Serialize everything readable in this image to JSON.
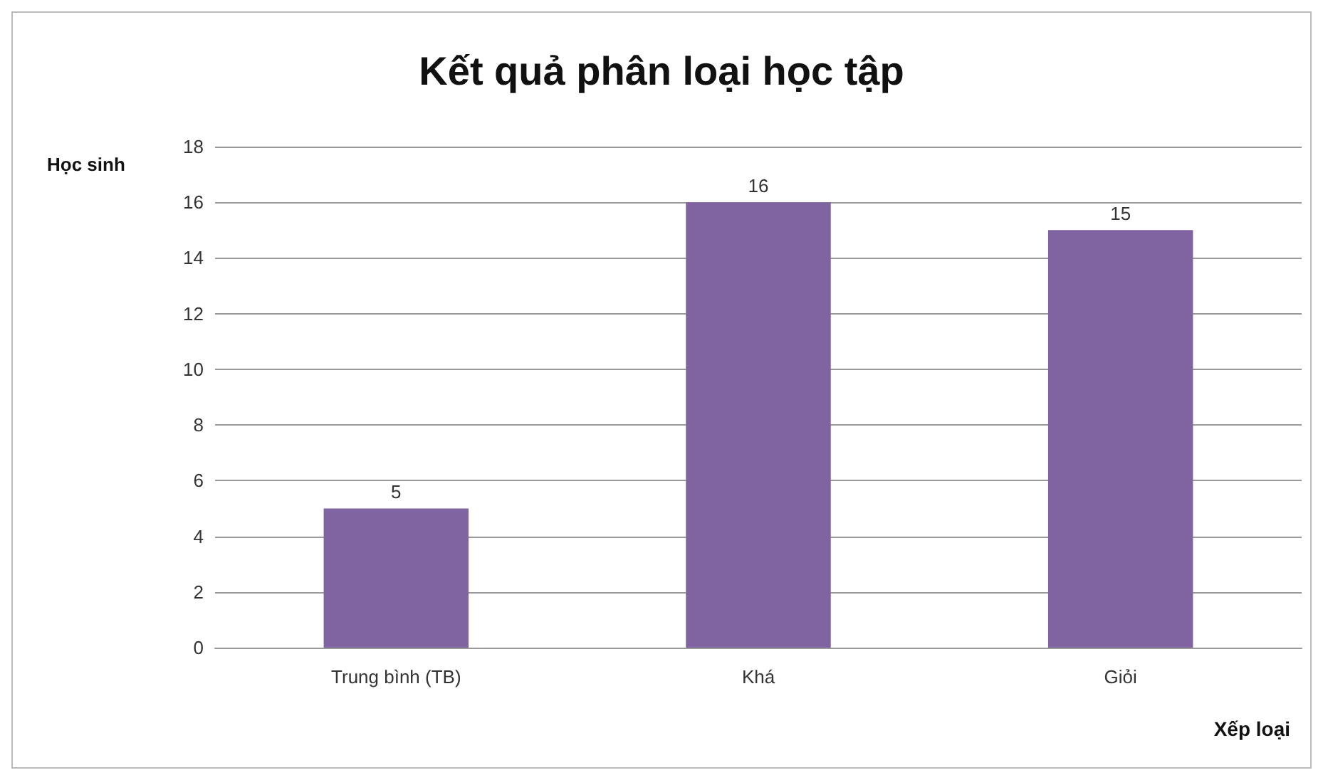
{
  "chart_data": {
    "type": "bar",
    "title": "Kết quả phân loại học tập",
    "xlabel": "Xếp loại",
    "ylabel": "Học sinh",
    "categories": [
      "Trung bình (TB)",
      "Khá",
      "Giỏi"
    ],
    "values": [
      5,
      16,
      15
    ],
    "color": "#8064a2",
    "ylim": [
      0,
      18
    ],
    "yticks": [
      0,
      2,
      4,
      6,
      8,
      10,
      12,
      14,
      16,
      18
    ],
    "grid": "y",
    "data_labels": true
  }
}
